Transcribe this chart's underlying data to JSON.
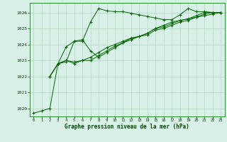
{
  "title": "Graphe pression niveau de la mer (hPa)",
  "background_color": "#d8f0e8",
  "plot_bg_color": "#d8f0e8",
  "grid_color": "#b0d8c0",
  "line_color": "#006600",
  "xlim": [
    -0.5,
    23.5
  ],
  "ylim": [
    1019.5,
    1026.6
  ],
  "yticks": [
    1020,
    1021,
    1022,
    1023,
    1024,
    1025,
    1026
  ],
  "xticks": [
    0,
    1,
    2,
    3,
    4,
    5,
    6,
    7,
    8,
    9,
    10,
    11,
    12,
    13,
    14,
    15,
    16,
    17,
    18,
    19,
    20,
    21,
    22,
    23
  ],
  "series": [
    [
      1019.7,
      1019.85,
      1020.0,
      1022.8,
      1022.9,
      1024.2,
      1024.2,
      1025.4,
      1026.25,
      1026.1,
      1026.05,
      1026.05,
      1025.95,
      1025.85,
      1025.75,
      1025.65,
      1025.55,
      1025.55,
      1025.85,
      1026.25,
      1026.05,
      1026.05,
      1026.0,
      1026.0
    ],
    [
      null,
      null,
      1022.0,
      1022.8,
      1023.85,
      1024.2,
      1024.3,
      1023.6,
      1023.2,
      1023.5,
      1023.8,
      1024.1,
      1024.4,
      1024.5,
      1024.7,
      1025.0,
      1025.2,
      1025.4,
      1025.5,
      1025.6,
      1025.8,
      1026.0,
      1026.0,
      1026.0
    ],
    [
      null,
      null,
      1022.0,
      1022.8,
      1023.0,
      1022.8,
      1023.0,
      1023.2,
      1023.5,
      1023.8,
      1024.0,
      1024.2,
      1024.4,
      1024.5,
      1024.7,
      1025.0,
      1025.1,
      1025.3,
      1025.5,
      1025.6,
      1025.7,
      1025.9,
      1026.0,
      1026.0
    ],
    [
      null,
      null,
      1022.0,
      1022.8,
      1023.0,
      1022.9,
      1023.0,
      1023.0,
      1023.3,
      1023.6,
      1023.9,
      1024.1,
      1024.3,
      1024.5,
      1024.6,
      1024.9,
      1025.0,
      1025.2,
      1025.4,
      1025.5,
      1025.7,
      1025.8,
      1025.9,
      1026.0
    ]
  ]
}
